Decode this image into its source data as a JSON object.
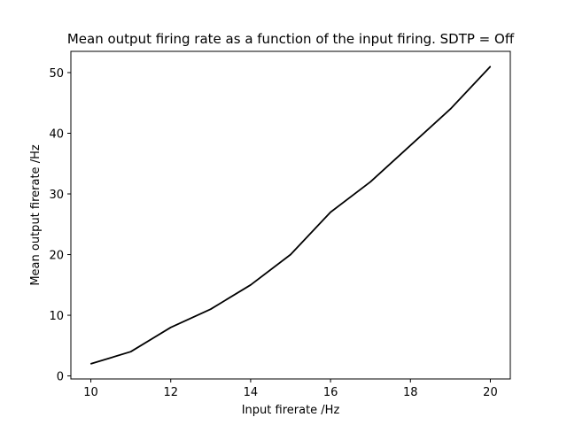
{
  "chart_data": {
    "type": "line",
    "title": "Mean output firing rate as a function of the input firing. SDTP = Off",
    "xlabel": "Input firerate /Hz",
    "ylabel": "Mean output firerate /Hz",
    "xlim": [
      9.5,
      20.5
    ],
    "ylim": [
      -0.5,
      53.5
    ],
    "xticks": [
      10,
      12,
      14,
      16,
      18,
      20
    ],
    "yticks": [
      0,
      10,
      20,
      30,
      40,
      50
    ],
    "grid": false,
    "series": [
      {
        "color": "#000000",
        "x": [
          10,
          11,
          12,
          13,
          14,
          15,
          16,
          17,
          18,
          19,
          20
        ],
        "y": [
          2,
          4,
          8,
          11,
          15,
          20,
          27,
          32,
          38,
          44,
          51
        ]
      }
    ]
  }
}
